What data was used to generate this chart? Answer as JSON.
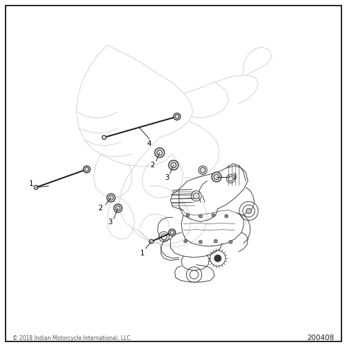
{
  "bg_color": "#ffffff",
  "fig_width": 5.0,
  "fig_height": 5.0,
  "dpi": 100,
  "copyright_text": "© 2018 Indian Motorcycle International, LLC",
  "part_number": "200408",
  "copyright_fontsize": 5.5,
  "part_number_fontsize": 7.5,
  "label_fontsize": 7.5,
  "border_lw": 1.2,
  "frame_color": "#cccccc",
  "engine_color": "#404040",
  "part_color": "#222222",
  "frame_lw": 0.6,
  "engine_lw": 0.7
}
